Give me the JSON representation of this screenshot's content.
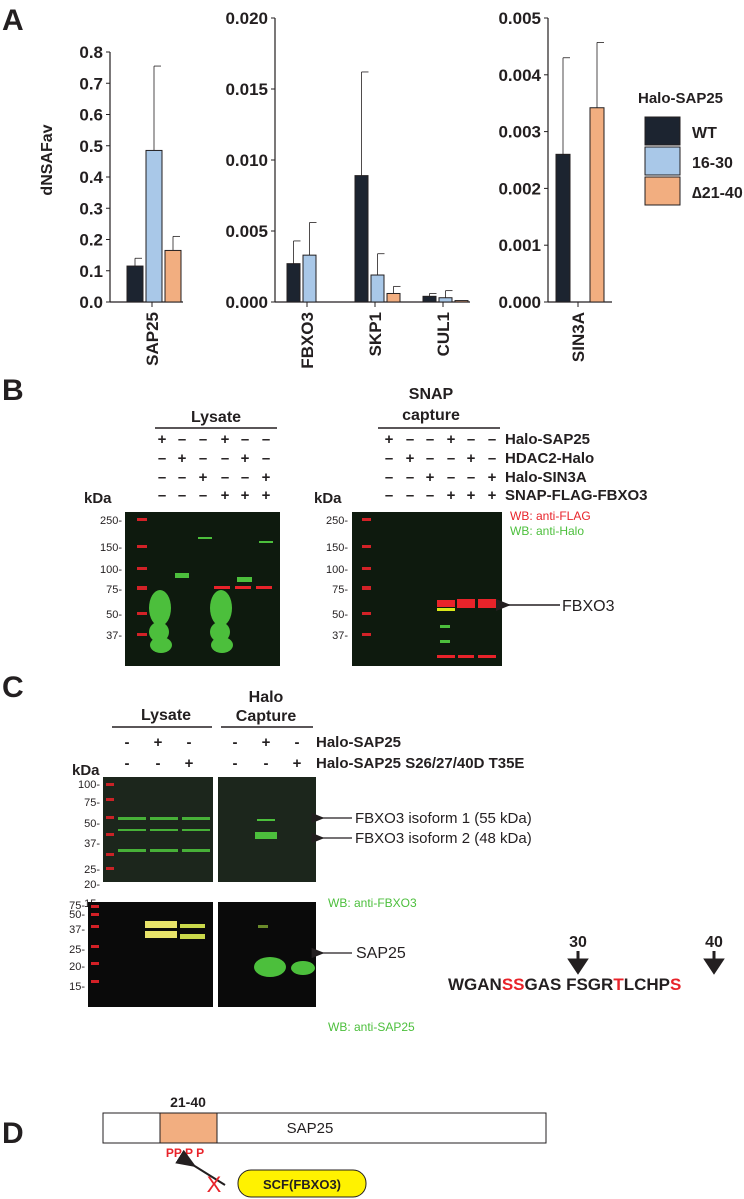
{
  "panels": {
    "a": "A",
    "b": "B",
    "c": "C",
    "d": "D"
  },
  "chart_data": {
    "type": "bar",
    "ylabel": "dNSAFav",
    "legend": {
      "title": "Halo-SAP25",
      "placement": "right",
      "entries": [
        {
          "label": "WT",
          "color": "#1c2430"
        },
        {
          "label": "16-30",
          "color": "#a9c8e8"
        },
        {
          "label": "∆21-40",
          "color": "#f2ae80"
        }
      ]
    },
    "subplots": [
      {
        "ylim": [
          0,
          0.8
        ],
        "yticks": [
          "0.0",
          "0.1",
          "0.2",
          "0.3",
          "0.4",
          "0.5",
          "0.6",
          "0.7",
          "0.8"
        ],
        "categories": [
          "SAP25"
        ],
        "series": [
          {
            "name": "WT",
            "values": [
              0.115
            ],
            "errors": [
              0.025
            ]
          },
          {
            "name": "16-30",
            "values": [
              0.485
            ],
            "errors": [
              0.27
            ]
          },
          {
            "name": "∆21-40",
            "values": [
              0.165
            ],
            "errors": [
              0.045
            ]
          }
        ]
      },
      {
        "ylim": [
          0,
          0.02
        ],
        "yticks": [
          "0.000",
          "0.005",
          "0.010",
          "0.015",
          "0.020"
        ],
        "categories": [
          "FBXO3",
          "SKP1",
          "CUL1"
        ],
        "series": [
          {
            "name": "WT",
            "values": [
              0.0027,
              0.0089,
              0.0004
            ],
            "errors": [
              0.0016,
              0.0073,
              0.0002
            ]
          },
          {
            "name": "16-30",
            "values": [
              0.0033,
              0.0019,
              0.0003
            ],
            "errors": [
              0.0023,
              0.0015,
              0.0005
            ]
          },
          {
            "name": "∆21-40",
            "values": [
              0,
              0.0006,
              0.0001
            ],
            "errors": [
              0,
              0.0005,
              0
            ]
          }
        ]
      },
      {
        "ylim": [
          0,
          0.005
        ],
        "yticks": [
          "0.000",
          "0.001",
          "0.002",
          "0.003",
          "0.004",
          "0.005"
        ],
        "categories": [
          "SIN3A"
        ],
        "series": [
          {
            "name": "WT",
            "values": [
              0.0026
            ],
            "errors": [
              0.0017
            ]
          },
          {
            "name": "16-30",
            "values": [
              0
            ],
            "errors": [
              0
            ]
          },
          {
            "name": "∆21-40",
            "values": [
              0.00342
            ],
            "errors": [
              0.00115
            ]
          }
        ]
      }
    ]
  },
  "panel_b": {
    "lysate_title": "Lysate",
    "capture_title_1": "SNAP",
    "capture_title_2": "capture",
    "kda": "kDa",
    "rows": [
      {
        "label": "Halo-SAP25",
        "signs": [
          "+",
          "–",
          "–",
          "+",
          "–",
          "–"
        ]
      },
      {
        "label": "HDAC2-Halo",
        "signs": [
          "–",
          "+",
          "–",
          "–",
          "+",
          "–"
        ]
      },
      {
        "label": "Halo-SIN3A",
        "signs": [
          "–",
          "–",
          "+",
          "–",
          "–",
          "+"
        ]
      },
      {
        "label": "SNAP-FLAG-FBXO3",
        "signs": [
          "–",
          "–",
          "–",
          "+",
          "+",
          "+"
        ]
      }
    ],
    "markers": [
      "250-",
      "150-",
      "100-",
      "75-",
      "50-",
      "37-"
    ],
    "wb_red": "WB: anti-FLAG",
    "wb_green": "WB: anti-Halo",
    "arrow_label": "FBXO3"
  },
  "panel_c": {
    "lysate_title": "Lysate",
    "capture_title_1": "Halo",
    "capture_title_2": "Capture",
    "kda": "kDa",
    "rows": [
      {
        "label": "Halo-SAP25",
        "signs": [
          "-",
          "+",
          "-",
          "-",
          "+",
          "-"
        ]
      },
      {
        "label": "Halo-SAP25 S26/27/40D T35E",
        "signs": [
          "-",
          "-",
          "+",
          "-",
          "-",
          "+"
        ]
      }
    ],
    "markers_top": [
      "100-",
      "75-",
      "50-",
      "37-",
      "25-",
      "20-",
      "15-"
    ],
    "markers_bottom": [
      "75-",
      "50-",
      "37-",
      "25-",
      "20-",
      "15-"
    ],
    "isoform1": "FBXO3 isoform 1 (55 kDa)",
    "isoform2": "FBXO3 isoform 2 (48 kDa)",
    "wb_top": "WB: anti-FBXO3",
    "sap25_label": "SAP25",
    "wb_bottom": "WB: anti-SAP25",
    "pos30": "30",
    "pos40": "40",
    "sequence": [
      {
        "text": "WGAN",
        "red": false
      },
      {
        "text": "SS",
        "red": true
      },
      {
        "text": "GAS FSGR",
        "red": false
      },
      {
        "text": "T",
        "red": true
      },
      {
        "text": "LCHP",
        "red": false
      },
      {
        "text": "S",
        "red": true
      }
    ]
  },
  "panel_d": {
    "region": "21-40",
    "protein": "SAP25",
    "phospho": "PP P P",
    "complex": "SCF(FBXO3)",
    "block": "X"
  },
  "colors": {
    "wt": "#1c2430",
    "mut1": "#a9c8e8",
    "mut2": "#f2ae80",
    "red": "#e8232a",
    "green": "#4cbf3c",
    "yellow": "#fff200"
  }
}
